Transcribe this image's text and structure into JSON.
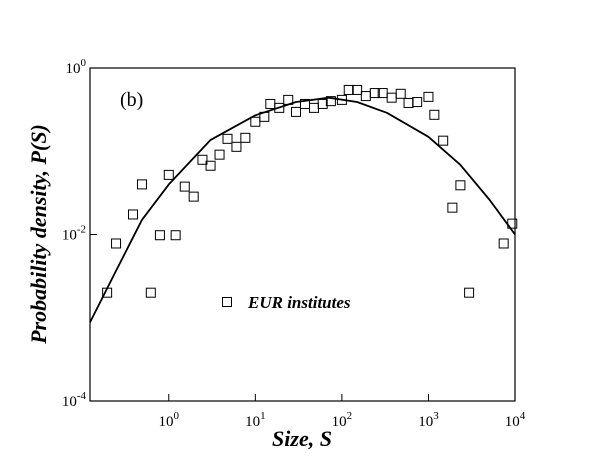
{
  "chart_data": {
    "type": "scatter",
    "panel_label": "(b)",
    "x_label": "Size, S",
    "y_label": "Probability density, P(S)",
    "log_x": true,
    "log_y": true,
    "xlim": [
      0.123,
      10000
    ],
    "ylim": [
      0.0001,
      1
    ],
    "xticks": [
      {
        "value": 1,
        "label": "10^0"
      },
      {
        "value": 10,
        "label": "10^1"
      },
      {
        "value": 100,
        "label": "10^2"
      },
      {
        "value": 1000,
        "label": "10^3"
      },
      {
        "value": 10000,
        "label": "10^4"
      }
    ],
    "yticks": [
      {
        "value": 0.0001,
        "label": "10^-4"
      },
      {
        "value": 0.01,
        "label": "10^-2"
      },
      {
        "value": 1,
        "label": "10^0"
      }
    ],
    "series": [
      {
        "name": "EUR institutes",
        "color": "#000000",
        "marker": "open-square",
        "x": [
          0.194,
          0.246,
          0.386,
          0.49,
          0.62,
          0.79,
          1.0,
          1.2,
          1.53,
          1.94,
          2.45,
          3.04,
          3.86,
          4.77,
          6.05,
          7.67,
          10,
          12.7,
          14.9,
          18.9,
          24,
          29.5,
          37.5,
          47.6,
          60,
          74.6,
          100,
          120,
          150,
          189,
          240,
          296,
          376,
          478,
          589,
          741,
          1000,
          1170,
          1480,
          1890,
          2340,
          2950,
          7400,
          9300
        ],
        "values": [
          0.002,
          0.0078,
          0.0174,
          0.04,
          0.002,
          0.0098,
          0.052,
          0.0098,
          0.0376,
          0.0285,
          0.079,
          0.067,
          0.091,
          0.141,
          0.113,
          0.145,
          0.226,
          0.259,
          0.37,
          0.332,
          0.414,
          0.297,
          0.37,
          0.332,
          0.37,
          0.4,
          0.414,
          0.545,
          0.545,
          0.46,
          0.5,
          0.5,
          0.44,
          0.49,
          0.38,
          0.39,
          0.45,
          0.274,
          0.134,
          0.021,
          0.039,
          0.002,
          0.0078,
          0.0135
        ]
      },
      {
        "type": "line",
        "color": "#000000",
        "x": [
          0.123,
          0.25,
          0.49,
          1,
          3.04,
          10,
          29.5,
          71,
          150,
          331,
          1000,
          2330,
          5100,
          10000
        ],
        "values": [
          0.00088,
          0.0038,
          0.015,
          0.04,
          0.137,
          0.27,
          0.39,
          0.44,
          0.39,
          0.29,
          0.149,
          0.069,
          0.026,
          0.01
        ]
      }
    ]
  }
}
